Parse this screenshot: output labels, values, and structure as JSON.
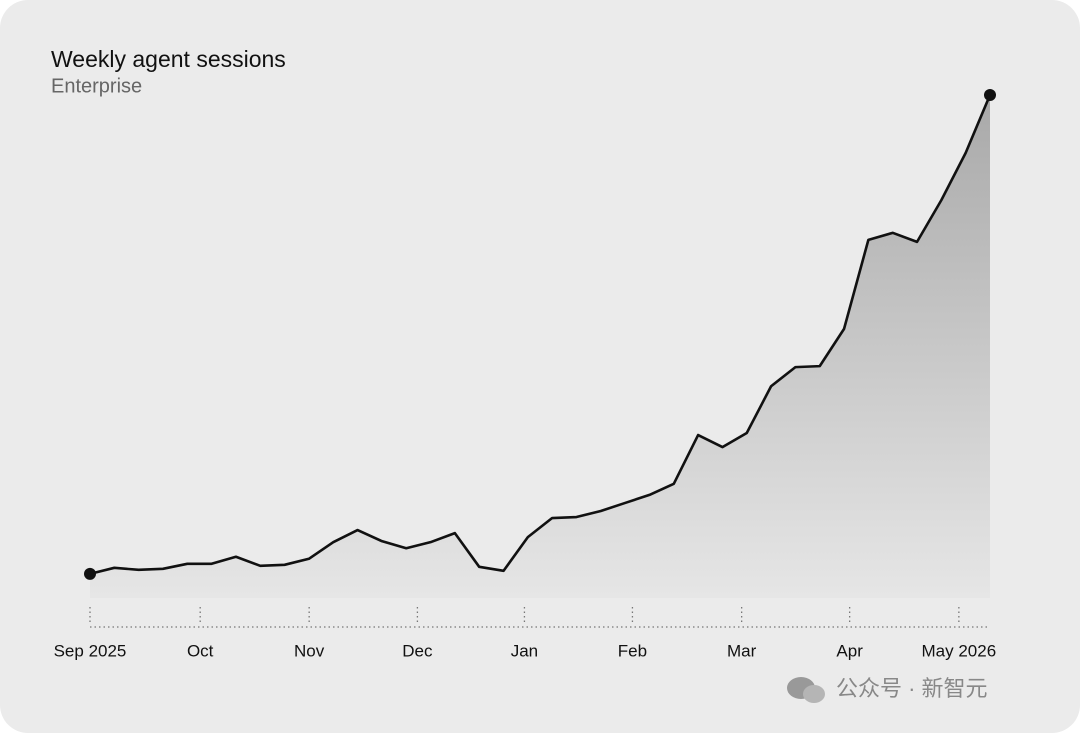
{
  "chart_data": {
    "type": "area",
    "title": "Weekly agent sessions",
    "subtitle": "Enterprise",
    "watermark": "公众号 · 新智元",
    "values": [
      4.8,
      6.0,
      5.6,
      5.8,
      6.8,
      6.8,
      8.2,
      6.4,
      6.6,
      7.8,
      11.1,
      13.5,
      11.3,
      9.9,
      11.1,
      12.9,
      6.2,
      5.4,
      12.1,
      15.9,
      16.1,
      17.3,
      18.9,
      20.5,
      22.7,
      32.4,
      30.0,
      32.8,
      42.1,
      45.9,
      46.1,
      53.5,
      71.2,
      72.6,
      70.8,
      79.1,
      88.5,
      100
    ],
    "color": "#111111",
    "xlim": [
      0,
      37
    ],
    "ylim": [
      0,
      100
    ],
    "xticks": [
      {
        "value": 0,
        "label": "Sep 2025"
      },
      {
        "value": 4.53,
        "label": "Oct"
      },
      {
        "value": 9.01,
        "label": "Nov"
      },
      {
        "value": 13.46,
        "label": "Dec"
      },
      {
        "value": 17.86,
        "label": "Jan"
      },
      {
        "value": 22.3,
        "label": "Feb"
      },
      {
        "value": 26.79,
        "label": "Mar"
      },
      {
        "value": 31.23,
        "label": "Apr"
      },
      {
        "value": 35.72,
        "label": "May 2026"
      }
    ]
  }
}
